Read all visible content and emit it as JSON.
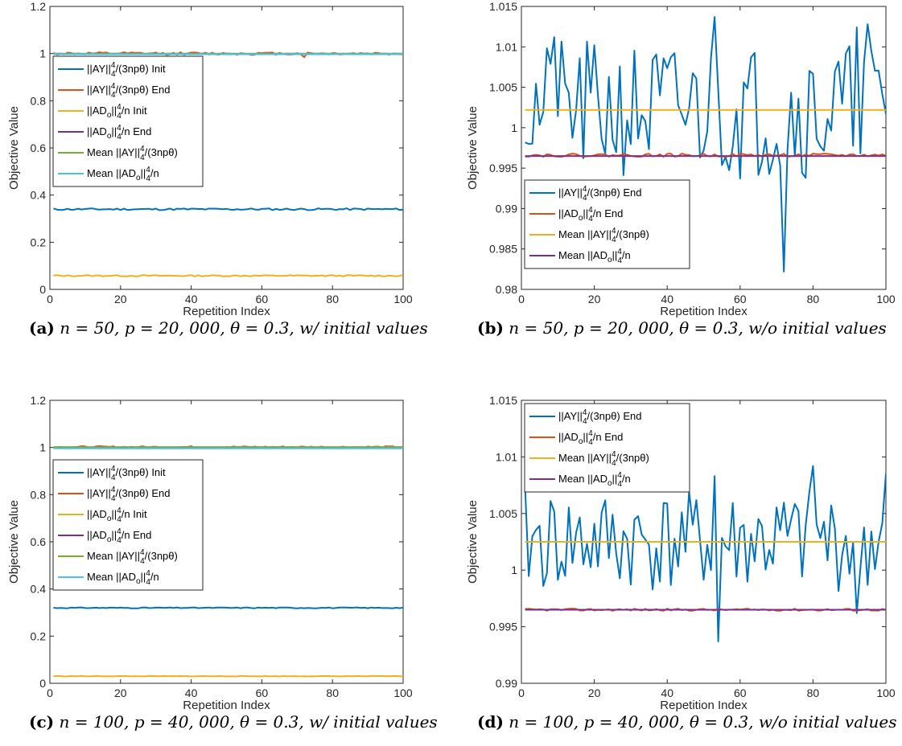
{
  "captions": [
    {
      "tag": "(a)",
      "text": "n = 50, p = 20, 000, θ = 0.3, w/ initial values"
    },
    {
      "tag": "(b)",
      "text": "n = 50, p = 20, 000, θ = 0.3, w/o initial values"
    },
    {
      "tag": "(c)",
      "text": "n = 100, p = 40, 000, θ = 0.3, w/ initial values"
    },
    {
      "tag": "(d)",
      "text": "n = 100, p = 40, 000, θ = 0.3, w/o initial values"
    }
  ],
  "chart_data": [
    {
      "id": "a",
      "type": "line",
      "title": "",
      "xlabel": "Repetition Index",
      "ylabel": "Objective Value",
      "xlim": [
        0,
        100
      ],
      "ylim": [
        0,
        1.2
      ],
      "xticks": [
        0,
        20,
        40,
        60,
        80,
        100
      ],
      "yticks": [
        0,
        0.2,
        0.4,
        0.6,
        0.8,
        1,
        1.2
      ],
      "ytick_labels": [
        "0",
        "0.2",
        "0.4",
        "0.6",
        "0.8",
        "1",
        "1.2"
      ],
      "legend_location": "upper-left",
      "series": [
        {
          "name": "||AY||4/(3npθ) Init",
          "color": "#0072BD",
          "kind": "noise",
          "base": 0.34,
          "amp": 0.004,
          "seed": 11
        },
        {
          "name": "||AY||4/(3npθ) End",
          "color": "#D95319",
          "kind": "noise",
          "base": 1.0,
          "amp": 0.006,
          "seed": 12,
          "spikes": [
            {
              "x": 72,
              "y": 0.985
            }
          ]
        },
        {
          "name": "||ADo||4/n Init",
          "color": "#EDB120",
          "kind": "noise",
          "base": 0.058,
          "amp": 0.003,
          "seed": 13
        },
        {
          "name": "||ADo||4/n End",
          "color": "#7E2F8E",
          "kind": "noise",
          "base": 0.999,
          "amp": 0.001,
          "seed": 14
        },
        {
          "name": "Mean ||AY||4/(3npθ)",
          "color": "#77AC30",
          "kind": "const",
          "base": 1.0
        },
        {
          "name": "Mean ||ADo||4/n",
          "color": "#4DBEEE",
          "kind": "const",
          "base": 0.997
        }
      ]
    },
    {
      "id": "b",
      "type": "line",
      "title": "",
      "xlabel": "Repetition Index",
      "ylabel": "Objective Value",
      "xlim": [
        0,
        100
      ],
      "ylim": [
        0.98,
        1.015
      ],
      "xticks": [
        0,
        20,
        40,
        60,
        80,
        100
      ],
      "yticks": [
        0.98,
        0.985,
        0.99,
        0.995,
        1,
        1.005,
        1.01,
        1.015
      ],
      "ytick_labels": [
        "0.98",
        "0.985",
        "0.99",
        "0.995",
        "1",
        "1.005",
        "1.01",
        "1.015"
      ],
      "legend_location": "lower-left",
      "series": [
        {
          "name": "||AY||4/(3npθ) End",
          "color": "#0072BD",
          "kind": "noise",
          "base": 1.0022,
          "amp": 0.0085,
          "seed": 21,
          "spikes": [
            {
              "x": 53,
              "y": 1.0137
            },
            {
              "x": 72,
              "y": 0.9822
            },
            {
              "x": 95,
              "y": 1.0128
            },
            {
              "x": 92,
              "y": 1.0124
            },
            {
              "x": 9,
              "y": 1.0112
            }
          ]
        },
        {
          "name": "||ADo||4/n End",
          "color": "#D95319",
          "kind": "noise",
          "base": 0.9966,
          "amp": 0.0002,
          "seed": 22
        },
        {
          "name": "Mean ||AY||4/(3npθ)",
          "color": "#EDB120",
          "kind": "const",
          "base": 1.0022
        },
        {
          "name": "Mean ||ADo||4/n",
          "color": "#7E2F8E",
          "kind": "const",
          "base": 0.9965
        }
      ]
    },
    {
      "id": "c",
      "type": "line",
      "title": "",
      "xlabel": "Repetition Index",
      "ylabel": "Objective Value",
      "xlim": [
        0,
        100
      ],
      "ylim": [
        0,
        1.2
      ],
      "xticks": [
        0,
        20,
        40,
        60,
        80,
        100
      ],
      "yticks": [
        0,
        0.2,
        0.4,
        0.6,
        0.8,
        1,
        1.2
      ],
      "ytick_labels": [
        "0",
        "0.2",
        "0.4",
        "0.6",
        "0.8",
        "1",
        "1.2"
      ],
      "legend_location": "center-left",
      "series": [
        {
          "name": "||AY||4/(3npθ) Init",
          "color": "#0072BD",
          "kind": "noise",
          "base": 0.32,
          "amp": 0.002,
          "seed": 31
        },
        {
          "name": "||AY||4/(3npθ) End",
          "color": "#D95319",
          "kind": "noise",
          "base": 1.002,
          "amp": 0.004,
          "seed": 32
        },
        {
          "name": "||ADo||4/n Init",
          "color": "#EDB120",
          "kind": "noise",
          "base": 0.03,
          "amp": 0.001,
          "seed": 33
        },
        {
          "name": "||ADo||4/n End",
          "color": "#7E2F8E",
          "kind": "noise",
          "base": 0.998,
          "amp": 0.001,
          "seed": 34
        },
        {
          "name": "Mean ||AY||4/(3npθ)",
          "color": "#77AC30",
          "kind": "const",
          "base": 1.002
        },
        {
          "name": "Mean ||ADo||4/n",
          "color": "#4DBEEE",
          "kind": "const",
          "base": 0.996
        }
      ]
    },
    {
      "id": "d",
      "type": "line",
      "title": "",
      "xlabel": "Repetition Index",
      "ylabel": "Objective Value",
      "xlim": [
        0,
        100
      ],
      "ylim": [
        0.99,
        1.015
      ],
      "xticks": [
        0,
        20,
        40,
        60,
        80,
        100
      ],
      "yticks": [
        0.99,
        0.995,
        1,
        1.005,
        1.01,
        1.015
      ],
      "ytick_labels": [
        "0.99",
        "0.995",
        "1",
        "1.005",
        "1.01",
        "1.015"
      ],
      "legend_location": "upper-left",
      "series": [
        {
          "name": "||AY||4/(3npθ) End",
          "color": "#0072BD",
          "kind": "noise",
          "base": 1.0025,
          "amp": 0.0045,
          "seed": 41,
          "spikes": [
            {
              "x": 54,
              "y": 0.9937
            },
            {
              "x": 80,
              "y": 1.0092
            },
            {
              "x": 100,
              "y": 1.0085
            },
            {
              "x": 1,
              "y": 1.0075
            },
            {
              "x": 53,
              "y": 1.0083
            },
            {
              "x": 92,
              "y": 0.9962
            }
          ]
        },
        {
          "name": "||ADo||4/n End",
          "color": "#D95319",
          "kind": "noise",
          "base": 0.9965,
          "amp": 0.0001,
          "seed": 42
        },
        {
          "name": "Mean ||AY||4/(3npθ)",
          "color": "#EDB120",
          "kind": "const",
          "base": 1.0025
        },
        {
          "name": "Mean ||ADo||4/n",
          "color": "#7E2F8E",
          "kind": "const",
          "base": 0.9965
        }
      ]
    }
  ]
}
